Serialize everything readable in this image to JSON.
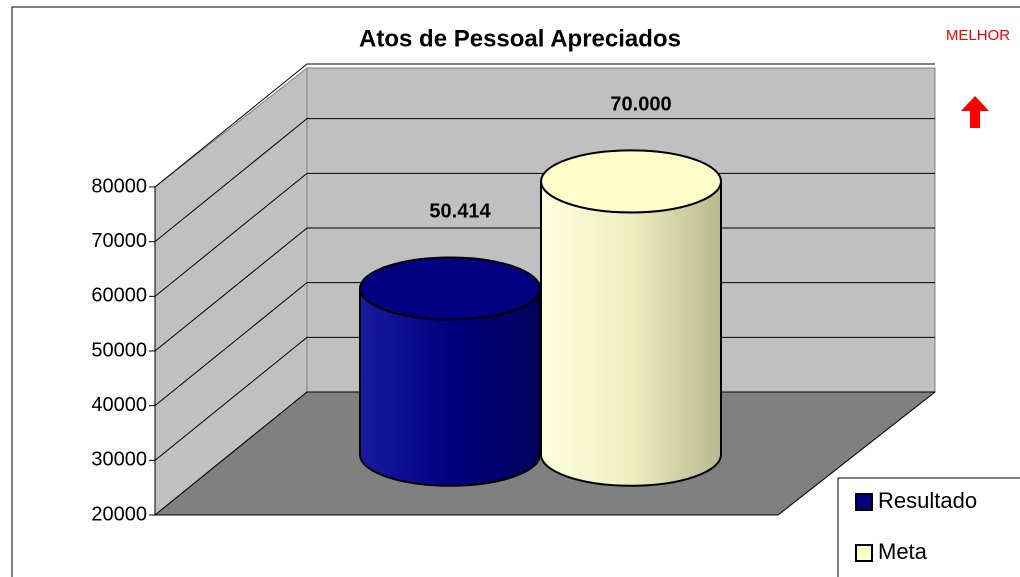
{
  "chart_data": {
    "type": "bar3d",
    "title": "Atos de Pessoal Apreciados",
    "annotations": [
      "MELHOR"
    ],
    "categories": [
      null
    ],
    "series": [
      {
        "name": "Resultado",
        "color": "#000080",
        "values": [
          50414
        ],
        "value_labels": [
          "50.414"
        ]
      },
      {
        "name": "Meta",
        "color": "#ffffcc",
        "values": [
          70000
        ],
        "value_labels": [
          "70.000"
        ]
      }
    ],
    "ylim": [
      20000,
      80000
    ],
    "yticks": [
      20000,
      30000,
      40000,
      50000,
      60000,
      70000,
      80000
    ],
    "grid": true,
    "legend": "bottom-right"
  }
}
